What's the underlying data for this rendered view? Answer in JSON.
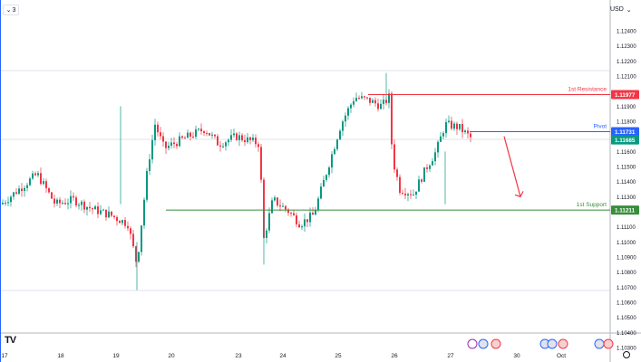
{
  "toolbar": {
    "collapse_count": "3",
    "currency_label": "USD",
    "logo_text": "TV"
  },
  "chart_data": {
    "type": "candlestick",
    "price_axis": {
      "ticks": [
        "1.12400",
        "1.12300",
        "1.12200",
        "1.12100",
        "1.11900",
        "1.11800",
        "1.11600",
        "1.11500",
        "1.11400",
        "1.11300",
        "1.11100",
        "1.11000",
        "1.10900",
        "1.10800",
        "1.10700",
        "1.10600",
        "1.10500",
        "1.10400",
        "1.10300"
      ],
      "range": [
        1.103,
        1.125
      ]
    },
    "time_axis": {
      "labels": [
        "17",
        "18",
        "19",
        "20",
        "23",
        "24",
        "25",
        "26",
        "27",
        "30",
        "Oct"
      ]
    },
    "levels": [
      {
        "name": "1st Resistance",
        "value": 1.11977,
        "value_label": "1.11977",
        "color": "#f23645"
      },
      {
        "name": "Pivot",
        "value": 1.11731,
        "value_label": "1.11731",
        "color": "#2962ff"
      },
      {
        "name": "1st Support",
        "value": 1.11211,
        "value_label": "1.11211",
        "color": "#388e3c"
      }
    ],
    "current_price": {
      "value": 1.11685,
      "label": "1.11685",
      "color": "#089981"
    },
    "arrow": {
      "color": "#f23645",
      "from": 1.117,
      "to": 1.113
    },
    "colors": {
      "up": "#089981",
      "down": "#f23645"
    }
  }
}
